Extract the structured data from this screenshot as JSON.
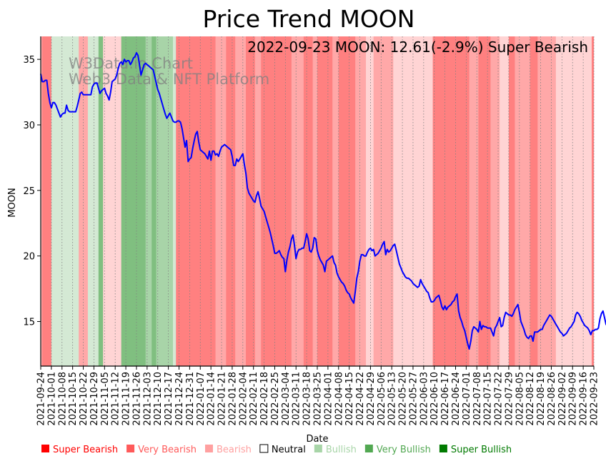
{
  "chart_data": {
    "type": "line",
    "title": "Price Trend MOON",
    "xlabel": "Date",
    "ylabel": "MOON",
    "ylim": [
      11.6,
      36.75
    ],
    "yticks": [
      15,
      20,
      25,
      30,
      35
    ],
    "x_start": "2021-09-24",
    "x_end": "2022-09-23",
    "xticks": [
      "2021-09-24",
      "2021-10-01",
      "2021-10-08",
      "2021-10-15",
      "2021-10-22",
      "2021-10-29",
      "2021-11-05",
      "2021-11-12",
      "2021-11-19",
      "2021-11-26",
      "2021-12-03",
      "2021-12-10",
      "2021-12-17",
      "2021-12-24",
      "2021-12-31",
      "2022-01-07",
      "2022-01-14",
      "2022-01-21",
      "2022-01-28",
      "2022-02-04",
      "2022-02-11",
      "2022-02-18",
      "2022-02-25",
      "2022-03-04",
      "2022-03-11",
      "2022-03-18",
      "2022-03-25",
      "2022-04-01",
      "2022-04-08",
      "2022-04-15",
      "2022-04-22",
      "2022-04-29",
      "2022-05-06",
      "2022-05-13",
      "2022-05-20",
      "2022-05-27",
      "2022-06-03",
      "2022-06-10",
      "2022-06-17",
      "2022-06-24",
      "2022-07-01",
      "2022-07-08",
      "2022-07-15",
      "2022-07-22",
      "2022-07-29",
      "2022-08-05",
      "2022-08-12",
      "2022-08-19",
      "2022-08-26",
      "2022-09-02",
      "2022-09-09",
      "2022-09-16",
      "2022-09-23"
    ],
    "annotation": "2022-09-23 MOON: 12.61(-2.9%) Super Bearish",
    "watermark": [
      "W3Data.io Chart",
      "Web3 Data & NFT Platform"
    ],
    "grid": "vertical-dotted",
    "series": [
      {
        "name": "MOON",
        "color": "#0000ff",
        "day_offsets": [
          0,
          1,
          2,
          3,
          4,
          5,
          6,
          7,
          8,
          9,
          10,
          11,
          12,
          13,
          14,
          15,
          16,
          17,
          18,
          19,
          20,
          21,
          22,
          23,
          24,
          25,
          26,
          27,
          28,
          29,
          30,
          31,
          32,
          33,
          34,
          35,
          36,
          37,
          38,
          39,
          40,
          41,
          42,
          43,
          44,
          45,
          46,
          47,
          48,
          49,
          50,
          51,
          52,
          53,
          54,
          55,
          56,
          57,
          58,
          59,
          60,
          61,
          62,
          63,
          64,
          65,
          66,
          67,
          68,
          69,
          70,
          71,
          72,
          73,
          74,
          75,
          76,
          77,
          78,
          79,
          80,
          81,
          82,
          83,
          84,
          85,
          86,
          87,
          88,
          89,
          90,
          91,
          92,
          93,
          94,
          95,
          96,
          97,
          98,
          99,
          100,
          101,
          102,
          103,
          104,
          105,
          106,
          107,
          108,
          109,
          110,
          111,
          112,
          113,
          114,
          115,
          116,
          117,
          118,
          119,
          120,
          121,
          122,
          123,
          124,
          125,
          126,
          127,
          128,
          129,
          130,
          131,
          132,
          133,
          134,
          135,
          136,
          137,
          138,
          139,
          140,
          141,
          142,
          143,
          144,
          145,
          146,
          147,
          148,
          149,
          150,
          151,
          152,
          153,
          154,
          155,
          156,
          157,
          158,
          159,
          160,
          161,
          162,
          163,
          164,
          165,
          166,
          167,
          168,
          169,
          170,
          171,
          172,
          173,
          174,
          175,
          176,
          177,
          178,
          179,
          180,
          181,
          182,
          183,
          184,
          185,
          186,
          187,
          188,
          189,
          190,
          191,
          192,
          193,
          194,
          195,
          196,
          197,
          198,
          199,
          200,
          201,
          202,
          203,
          204,
          205,
          206,
          207,
          208,
          209,
          210,
          211,
          212,
          213,
          214,
          215,
          216,
          217,
          218,
          219,
          220,
          221,
          222,
          223,
          224,
          225,
          226,
          227,
          228,
          229,
          230,
          231,
          232,
          233,
          234,
          235,
          236,
          237,
          238,
          239,
          240,
          241,
          242,
          243,
          244,
          245,
          246,
          247,
          248,
          249,
          250,
          251,
          252,
          253,
          254,
          255,
          256,
          257,
          258,
          259,
          260,
          261,
          262,
          263,
          264,
          265,
          266,
          267,
          268,
          269,
          270,
          271,
          272,
          273,
          274,
          275,
          276,
          277,
          278,
          279,
          280,
          281,
          282,
          283,
          284,
          285,
          286,
          287,
          288,
          289,
          290,
          291,
          292,
          293,
          294,
          295,
          296,
          297,
          298,
          299,
          300,
          301,
          302,
          303,
          304,
          305,
          306,
          307,
          308,
          309,
          310,
          311,
          312,
          313,
          314,
          315,
          316,
          317,
          318,
          319,
          320,
          321,
          322,
          323,
          324,
          325,
          326,
          327,
          328,
          329,
          330,
          331,
          332,
          333,
          334,
          335,
          336,
          337,
          338,
          339,
          340,
          341,
          342,
          343,
          344,
          345,
          346,
          347,
          348,
          349,
          350,
          351,
          352,
          353,
          354,
          355,
          356,
          357,
          358,
          359,
          360,
          361,
          362,
          363,
          364
        ],
        "values": [
          33.9,
          33.3,
          33.3,
          33.4,
          33.4,
          32.4,
          31.7,
          31.3,
          31.7,
          31.7,
          31.5,
          31.2,
          30.9,
          30.6,
          30.8,
          30.9,
          30.9,
          31.5,
          31.1,
          31.0,
          31.0,
          31.0,
          31.0,
          31.0,
          31.4,
          31.9,
          32.4,
          32.5,
          32.3,
          32.3,
          32.3,
          32.3,
          32.3,
          32.3,
          32.9,
          33.1,
          33.2,
          33.2,
          32.8,
          32.4,
          32.6,
          32.7,
          32.8,
          32.4,
          32.2,
          31.9,
          32.5,
          33.3,
          33.4,
          33.5,
          33.8,
          34.3,
          34.7,
          34.8,
          34.6,
          35.0,
          34.8,
          34.9,
          34.9,
          34.6,
          34.8,
          35.1,
          35.2,
          35.5,
          35.3,
          34.6,
          33.8,
          34.2,
          34.6,
          34.7,
          34.6,
          34.5,
          34.4,
          34.3,
          34.2,
          33.7,
          33.2,
          32.7,
          32.4,
          32.0,
          31.6,
          31.2,
          30.8,
          30.5,
          30.7,
          30.9,
          30.6,
          30.3,
          30.2,
          30.2,
          30.3,
          30.3,
          30.2,
          29.7,
          29.0,
          28.3,
          28.8,
          27.2,
          27.4,
          27.5,
          28.2,
          28.8,
          29.3,
          29.5,
          28.7,
          28.1,
          28.0,
          27.9,
          27.8,
          27.6,
          27.4,
          28.0,
          27.3,
          28.0,
          28.0,
          27.7,
          27.8,
          27.6,
          28.0,
          28.3,
          28.4,
          28.5,
          28.4,
          28.3,
          28.2,
          28.1,
          27.6,
          26.9,
          26.9,
          27.4,
          27.2,
          27.4,
          27.6,
          27.8,
          27.0,
          26.3,
          25.2,
          24.8,
          24.6,
          24.4,
          24.2,
          24.1,
          24.6,
          24.9,
          24.4,
          23.8,
          23.6,
          23.4,
          23.0,
          22.6,
          22.2,
          21.8,
          21.3,
          20.8,
          20.2,
          20.2,
          20.3,
          20.4,
          20.1,
          19.9,
          19.8,
          18.8,
          19.7,
          20.3,
          20.7,
          21.3,
          21.6,
          20.8,
          19.8,
          20.3,
          20.5,
          20.5,
          20.6,
          20.6,
          21.1,
          21.7,
          21.3,
          20.4,
          20.3,
          20.6,
          21.4,
          21.3,
          20.4,
          20.0,
          19.7,
          19.5,
          19.3,
          18.8,
          19.6,
          19.7,
          19.8,
          19.9,
          20.0,
          19.5,
          19.3,
          18.7,
          18.4,
          18.2,
          18.0,
          17.9,
          17.7,
          17.4,
          17.2,
          17.1,
          16.8,
          16.6,
          16.4,
          17.3,
          18.3,
          18.8,
          19.6,
          20.1,
          20.1,
          20.0,
          20.0,
          20.3,
          20.5,
          20.6,
          20.4,
          20.5,
          20.0,
          20.1,
          20.2,
          20.4,
          20.6,
          20.9,
          21.1,
          20.1,
          20.5,
          20.3,
          20.4,
          20.6,
          20.8,
          20.9,
          20.4,
          19.9,
          19.4,
          19.1,
          18.8,
          18.6,
          18.4,
          18.3,
          18.3,
          18.2,
          18.1,
          17.9,
          17.8,
          17.7,
          17.6,
          17.7,
          18.2,
          17.9,
          17.7,
          17.5,
          17.3,
          17.2,
          16.8,
          16.5,
          16.5,
          16.6,
          16.8,
          16.9,
          17.0,
          16.6,
          16.1,
          15.9,
          16.2,
          15.9,
          16.1,
          16.2,
          16.3,
          16.5,
          16.6,
          16.9,
          17.1,
          15.8,
          15.3,
          15.0,
          14.6,
          14.3,
          13.8,
          13.3,
          12.9,
          13.5,
          14.3,
          14.6,
          14.5,
          14.4,
          14.2,
          15.0,
          14.4,
          14.7,
          14.6,
          14.6,
          14.5,
          14.5,
          14.5,
          14.2,
          13.9,
          14.5,
          14.7,
          15.0,
          15.3,
          14.6,
          14.7,
          15.3,
          15.7,
          15.6,
          15.5,
          15.5,
          15.4,
          15.6,
          15.9,
          16.1,
          16.3,
          15.7,
          15.0,
          14.7,
          14.4,
          14.0,
          13.8,
          13.7,
          13.9,
          13.9,
          13.5,
          14.2,
          14.2,
          14.2,
          14.3,
          14.4,
          14.4,
          14.7,
          14.9,
          15.1,
          15.3,
          15.5,
          15.4,
          15.2,
          15.0,
          14.8,
          14.6,
          14.4,
          14.2,
          14.1,
          13.9,
          14.0,
          14.1,
          14.3,
          14.5,
          14.6,
          14.8,
          15.0,
          15.5,
          15.7,
          15.6,
          15.4,
          15.1,
          14.9,
          14.7,
          14.6,
          14.5,
          14.3,
          14.0,
          14.3,
          14.3,
          14.4,
          14.4,
          14.5,
          15.2,
          15.6,
          15.8,
          15.3,
          14.8,
          14.6,
          14.9,
          14.9,
          14.9,
          14.8,
          14.6,
          14.2,
          13.7,
          14.5,
          15.0,
          15.2,
          15.1,
          15.0,
          14.8,
          14.6,
          14.5,
          14.4,
          14.3,
          14.2,
          14.1,
          13.9,
          13.7,
          13.5,
          13.3,
          13.0,
          12.8,
          12.61
        ]
      }
    ],
    "sentiment_bands": [
      {
        "from": 0,
        "to": 1,
        "level": "bearish"
      },
      {
        "from": 1,
        "to": 3,
        "level": "very_bearish"
      },
      {
        "from": 3,
        "to": 7,
        "level": "very_bearish"
      },
      {
        "from": 7,
        "to": 25,
        "level": "bullish"
      },
      {
        "from": 25,
        "to": 31,
        "level": "bearish"
      },
      {
        "from": 31,
        "to": 38,
        "level": "bullish"
      },
      {
        "from": 38,
        "to": 41,
        "level": "very_bullish"
      },
      {
        "from": 41,
        "to": 46,
        "level": "bearish_light"
      },
      {
        "from": 46,
        "to": 53,
        "level": "bearish_light"
      },
      {
        "from": 53,
        "to": 63,
        "level": "very_bullish"
      },
      {
        "from": 63,
        "to": 69,
        "level": "very_bullish"
      },
      {
        "from": 69,
        "to": 73,
        "level": "bullish_mid"
      },
      {
        "from": 73,
        "to": 76,
        "level": "very_bullish"
      },
      {
        "from": 76,
        "to": 87,
        "level": "bullish_mid"
      },
      {
        "from": 87,
        "to": 89,
        "level": "bullish"
      },
      {
        "from": 89,
        "to": 115,
        "level": "very_bearish"
      },
      {
        "from": 115,
        "to": 122,
        "level": "bearish"
      },
      {
        "from": 122,
        "to": 128,
        "level": "very_bearish"
      },
      {
        "from": 128,
        "to": 135,
        "level": "bearish"
      },
      {
        "from": 135,
        "to": 141,
        "level": "very_bearish"
      },
      {
        "from": 141,
        "to": 145,
        "level": "bearish"
      },
      {
        "from": 145,
        "to": 165,
        "level": "very_bearish"
      },
      {
        "from": 165,
        "to": 173,
        "level": "bearish"
      },
      {
        "from": 173,
        "to": 179,
        "level": "very_bearish"
      },
      {
        "from": 179,
        "to": 182,
        "level": "bearish"
      },
      {
        "from": 182,
        "to": 192,
        "level": "very_bearish"
      },
      {
        "from": 192,
        "to": 196,
        "level": "bearish"
      },
      {
        "from": 196,
        "to": 207,
        "level": "very_bearish"
      },
      {
        "from": 207,
        "to": 214,
        "level": "bearish"
      },
      {
        "from": 214,
        "to": 219,
        "level": "bearish_light"
      },
      {
        "from": 219,
        "to": 232,
        "level": "bearish"
      },
      {
        "from": 232,
        "to": 242,
        "level": "bearish_light"
      },
      {
        "from": 242,
        "to": 258,
        "level": "bearish_light"
      },
      {
        "from": 258,
        "to": 282,
        "level": "very_bearish"
      },
      {
        "from": 282,
        "to": 288,
        "level": "bearish"
      },
      {
        "from": 288,
        "to": 296,
        "level": "very_bearish"
      },
      {
        "from": 296,
        "to": 302,
        "level": "bearish"
      },
      {
        "from": 302,
        "to": 308,
        "level": "bearish_light"
      },
      {
        "from": 308,
        "to": 312,
        "level": "very_bearish"
      },
      {
        "from": 312,
        "to": 322,
        "level": "bearish"
      },
      {
        "from": 322,
        "to": 327,
        "level": "very_bearish"
      },
      {
        "from": 327,
        "to": 339,
        "level": "bearish"
      },
      {
        "from": 339,
        "to": 368,
        "level": "bearish_light"
      }
    ]
  },
  "legend": [
    {
      "label": "Super Bearish",
      "color": "#ff0000",
      "marker": "filled"
    },
    {
      "label": "Very Bearish",
      "color": "#ff5a5a",
      "marker": "filled"
    },
    {
      "label": "Bearish",
      "color": "#ffa0a0",
      "marker": "filled"
    },
    {
      "label": "Neutral",
      "color": "#000000",
      "marker": "hollow"
    },
    {
      "label": "Bullish",
      "color": "#a8d5a8",
      "marker": "filled"
    },
    {
      "label": "Very Bullish",
      "color": "#52a852",
      "marker": "filled"
    },
    {
      "label": "Super Bullish",
      "color": "#007a00",
      "marker": "filled"
    }
  ],
  "colors": {
    "very_bearish": "#ff8080",
    "bearish": "#ffa8a8",
    "bearish_light": "#ffd4d4",
    "bullish": "#d4e9d4",
    "bullish_mid": "#a8d4a8",
    "very_bullish": "#80bf80",
    "line": "#0000ff"
  }
}
